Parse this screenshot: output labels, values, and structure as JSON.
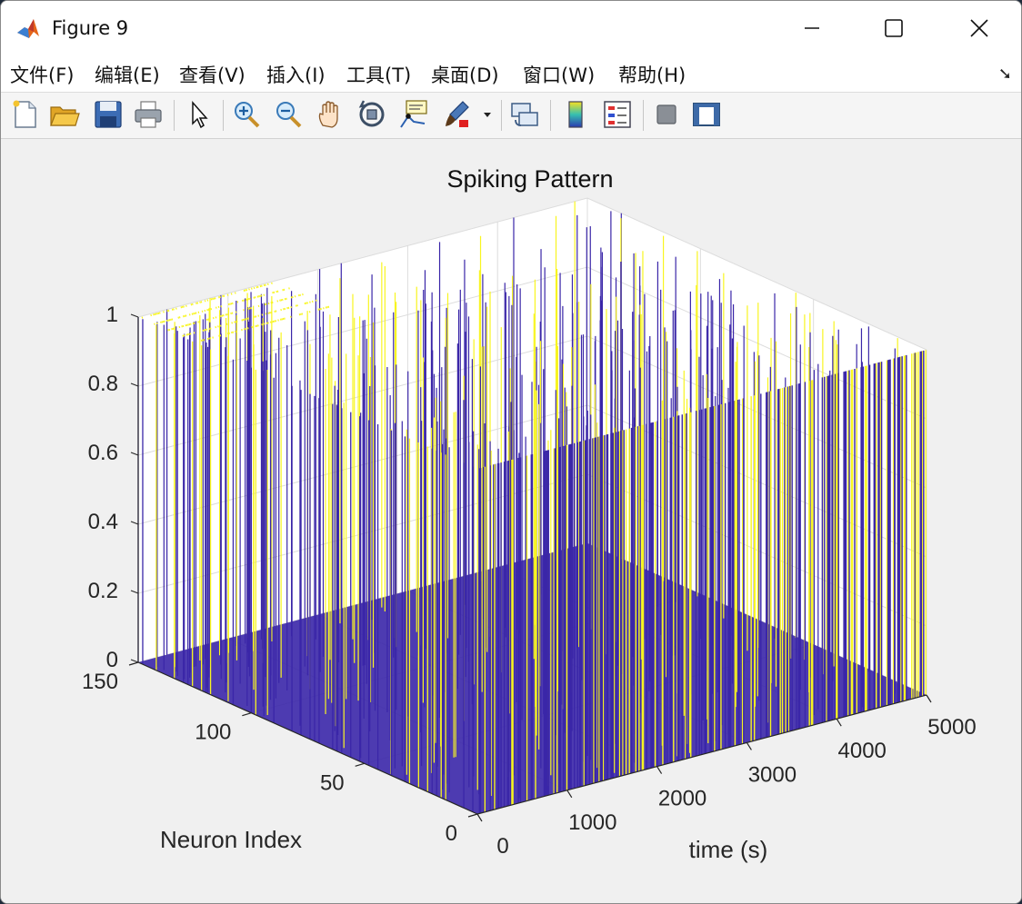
{
  "window": {
    "title": "Figure 9",
    "controls": [
      "minimize",
      "maximize",
      "close"
    ]
  },
  "menu": {
    "items": [
      "文件(F)",
      "编辑(E)",
      "查看(V)",
      "插入(I)",
      "工具(T)",
      "桌面(D)",
      "窗口(W)",
      "帮助(H)"
    ],
    "dock_icon": "undock-arrow-icon"
  },
  "toolbar": {
    "icons": [
      "new-figure-icon",
      "open-file-icon",
      "save-icon",
      "print-icon",
      "edit-plot-arrow-icon",
      "zoom-in-icon",
      "zoom-out-icon",
      "pan-hand-icon",
      "rotate-3d-icon",
      "data-cursor-icon",
      "brush-icon",
      "brush-dropdown-icon",
      "link-plot-icon",
      "colorbar-icon",
      "legend-icon",
      "hide-plot-tools-icon",
      "show-plot-tools-icon"
    ]
  },
  "chart_data": {
    "type": "3d-surface-raster",
    "title": "Spiking Pattern",
    "xlabel": "time (s)",
    "ylabel": "Neuron Index",
    "zlabel": "",
    "xlim": [
      0,
      5000
    ],
    "ylim": [
      0,
      150
    ],
    "zlim": [
      0,
      1
    ],
    "x_ticks": [
      "0",
      "1000",
      "2000",
      "3000",
      "4000",
      "5000"
    ],
    "y_ticks": [
      "0",
      "50",
      "100",
      "150"
    ],
    "z_ticks": [
      "0",
      "0.2",
      "0.4",
      "0.6",
      "0.8",
      "1"
    ],
    "grid": true,
    "colors": {
      "low": "#3a26a8",
      "high": "#f8f520"
    },
    "note_values": "binary spike raster: value 0 (no spike) or 1 (spike) per neuron per time step"
  }
}
